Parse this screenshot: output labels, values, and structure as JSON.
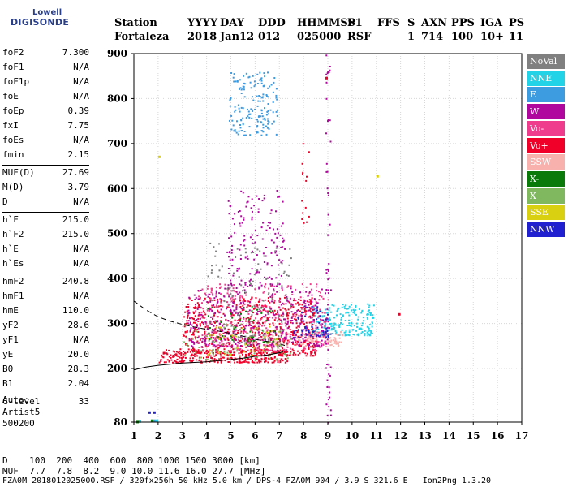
{
  "logo": {
    "line1": "Lowell",
    "line2": "DIGISONDE"
  },
  "header": {
    "labels": [
      "Station",
      "YYYY",
      "DAY",
      "DDD",
      "HHMMSS",
      "P1",
      "FFS",
      "S",
      "AXN",
      "PPS",
      "IGA",
      "PS"
    ],
    "values": [
      "Fortaleza",
      "2018",
      "Jan12",
      "012",
      "025000",
      "RSF",
      "1",
      "714",
      "100",
      "10+",
      "11"
    ]
  },
  "params_groups": [
    [
      {
        "name": "foF2",
        "value": "7.300"
      },
      {
        "name": "foF1",
        "value": "N/A"
      },
      {
        "name": "foF1p",
        "value": "N/A"
      },
      {
        "name": "foE",
        "value": "N/A"
      },
      {
        "name": "foEp",
        "value": "0.39"
      },
      {
        "name": "fxI",
        "value": "7.75"
      },
      {
        "name": "foEs",
        "value": "N/A"
      },
      {
        "name": "fmin",
        "value": "2.15"
      }
    ],
    [
      {
        "name": "MUF(D)",
        "value": "27.69"
      },
      {
        "name": "M(D)",
        "value": "3.79"
      },
      {
        "name": "D",
        "value": "N/A"
      }
    ],
    [
      {
        "name": "h`F",
        "value": "215.0"
      },
      {
        "name": "h`F2",
        "value": "215.0"
      },
      {
        "name": "h`E",
        "value": "N/A"
      },
      {
        "name": "h`Es",
        "value": "N/A"
      }
    ],
    [
      {
        "name": "hmF2",
        "value": "240.8"
      },
      {
        "name": "hmF1",
        "value": "N/A"
      },
      {
        "name": "hmE",
        "value": "110.0"
      },
      {
        "name": "yF2",
        "value": "28.6"
      },
      {
        "name": "yF1",
        "value": "N/A"
      },
      {
        "name": "yE",
        "value": "20.0"
      },
      {
        "name": "B0",
        "value": "28.3"
      },
      {
        "name": "B1",
        "value": "2.04"
      }
    ],
    [
      {
        "name": "C-level",
        "value": "33"
      }
    ]
  ],
  "auto": {
    "line1": "Auto:",
    "line2": "Artist5",
    "line3": "500200"
  },
  "legend": [
    {
      "label": "NoVal",
      "color": "#808080",
      "text_color": "#ffffff"
    },
    {
      "label": "NNE",
      "color": "#22d3e8",
      "text_color": "#ffffff"
    },
    {
      "label": "E",
      "color": "#3d9be0",
      "text_color": "#ffffff"
    },
    {
      "label": "W",
      "color": "#b0089e",
      "text_color": "#ffffff"
    },
    {
      "label": "Vo-",
      "color": "#f03c8c",
      "text_color": "#ffffff"
    },
    {
      "label": "Vo+",
      "color": "#f00028",
      "text_color": "#ffffff"
    },
    {
      "label": "SSW",
      "color": "#f9b1ad",
      "text_color": "#ffffff"
    },
    {
      "label": "X-",
      "color": "#0a7a0a",
      "text_color": "#ffffff"
    },
    {
      "label": "X+",
      "color": "#80b860",
      "text_color": "#ffffff"
    },
    {
      "label": "SSE",
      "color": "#d8d010",
      "text_color": "#ffffff"
    },
    {
      "label": "NNW",
      "color": "#2020d0",
      "text_color": "#ffffff"
    }
  ],
  "bottom": {
    "line1": "D    100  200  400  600  800 1000 1500 3000 [km]",
    "line2": "MUF  7.7  7.8  8.2  9.0 10.0 11.6 16.0 27.7 [MHz]",
    "line3": "FZA0M_2018012025000.RSF / 320fx256h 50 kHz 5.0 km / DPS-4 FZA0M 904 / 3.9 S 321.6 E   Ion2Png 1.3.20"
  },
  "chart_data": {
    "type": "scatter",
    "xlim": [
      1,
      17
    ],
    "ylim": [
      80,
      900
    ],
    "x_ticks": [
      1,
      2,
      3,
      4,
      5,
      6,
      7,
      8,
      9,
      10,
      11,
      12,
      13,
      14,
      15,
      16,
      17
    ],
    "y_ticks": [
      80,
      200,
      300,
      400,
      500,
      600,
      700,
      800,
      900
    ],
    "grid": true,
    "clusters": [
      {
        "series": "E",
        "color": "#3d9be0",
        "x": [
          4.9,
          6.9
        ],
        "y": [
          720,
          860
        ],
        "n": 170
      },
      {
        "series": "NNE",
        "color": "#22d3e8",
        "x": [
          8.3,
          10.9
        ],
        "y": [
          275,
          345
        ],
        "n": 210
      },
      {
        "series": "SSW",
        "color": "#f9b1ad",
        "x": [
          6.3,
          9.6
        ],
        "y": [
          250,
          285
        ],
        "n": 170
      },
      {
        "series": "Vo+",
        "color": "#f00028",
        "x": [
          2.0,
          7.3
        ],
        "y": [
          215,
          245
        ],
        "n": 280
      },
      {
        "series": "Vo+",
        "color": "#f00028",
        "x": [
          3.0,
          8.5
        ],
        "y": [
          230,
          360
        ],
        "n": 620
      },
      {
        "series": "Vo-",
        "color": "#f03c8c",
        "x": [
          3.5,
          9.0
        ],
        "y": [
          240,
          390
        ],
        "n": 380
      },
      {
        "series": "W",
        "color": "#b0089e",
        "x": [
          3.2,
          9.0
        ],
        "y": [
          250,
          380
        ],
        "n": 360
      },
      {
        "series": "W",
        "color": "#b0089e",
        "x": [
          4.8,
          7.2
        ],
        "y": [
          380,
          600
        ],
        "n": 160
      },
      {
        "series": "NoVal",
        "color": "#808080",
        "x": [
          4.0,
          7.5
        ],
        "y": [
          260,
          480
        ],
        "n": 120
      },
      {
        "series": "X+",
        "color": "#80b860",
        "x": [
          3.0,
          7.5
        ],
        "y": [
          220,
          300
        ],
        "n": 90
      },
      {
        "series": "X-",
        "color": "#0a7a0a",
        "x": [
          4.0,
          7.0
        ],
        "y": [
          260,
          340
        ],
        "n": 50
      },
      {
        "series": "SSE",
        "color": "#d8d010",
        "x": [
          4.0,
          7.0
        ],
        "y": [
          230,
          300
        ],
        "n": 40
      },
      {
        "series": "NNW",
        "color": "#2020d0",
        "x": [
          7.5,
          9.0
        ],
        "y": [
          270,
          340
        ],
        "n": 60
      },
      {
        "series": "W",
        "color": "#b0089e",
        "x": [
          8.9,
          9.1
        ],
        "y": [
          80,
          900
        ],
        "n": 60
      },
      {
        "series": "Vo+",
        "color": "#f00028",
        "x": [
          7.9,
          8.2
        ],
        "y": [
          520,
          770
        ],
        "n": 14
      }
    ],
    "extra_points": [
      {
        "x": 1.1,
        "y": 83,
        "color": "#0a7a0a"
      },
      {
        "x": 1.2,
        "y": 84,
        "color": "#22d3e8"
      },
      {
        "x": 1.7,
        "y": 86,
        "color": "#0a7a0a"
      },
      {
        "x": 1.8,
        "y": 86,
        "color": "#3d9be0"
      },
      {
        "x": 1.6,
        "y": 104,
        "color": "#2020d0"
      },
      {
        "x": 1.8,
        "y": 104,
        "color": "#2020d0"
      },
      {
        "x": 1.9,
        "y": 86,
        "color": "#22d3e8"
      },
      {
        "x": 2.0,
        "y": 673,
        "color": "#d8d010"
      },
      {
        "x": 11.0,
        "y": 630,
        "color": "#d8d010"
      },
      {
        "x": 11.9,
        "y": 323,
        "color": "#f00028"
      },
      {
        "x": 8.9,
        "y": 848,
        "color": "#f00028"
      }
    ],
    "trace_solid": {
      "x": [
        1.0,
        1.5,
        2.0,
        3.0,
        4.0,
        5.0,
        5.5,
        6.0,
        6.5,
        7.0,
        7.3
      ],
      "y": [
        197,
        203,
        207,
        212,
        215,
        220,
        223,
        227,
        230,
        235,
        240
      ]
    },
    "trace_dashed": {
      "x": [
        1.0,
        1.5,
        2.0,
        2.5,
        3.0,
        3.5,
        4.0,
        4.5,
        5.0,
        5.5,
        6.0,
        6.5,
        7.0,
        7.3
      ],
      "y": [
        350,
        330,
        315,
        305,
        298,
        292,
        287,
        283,
        278,
        272,
        265,
        260,
        255,
        250
      ]
    }
  }
}
